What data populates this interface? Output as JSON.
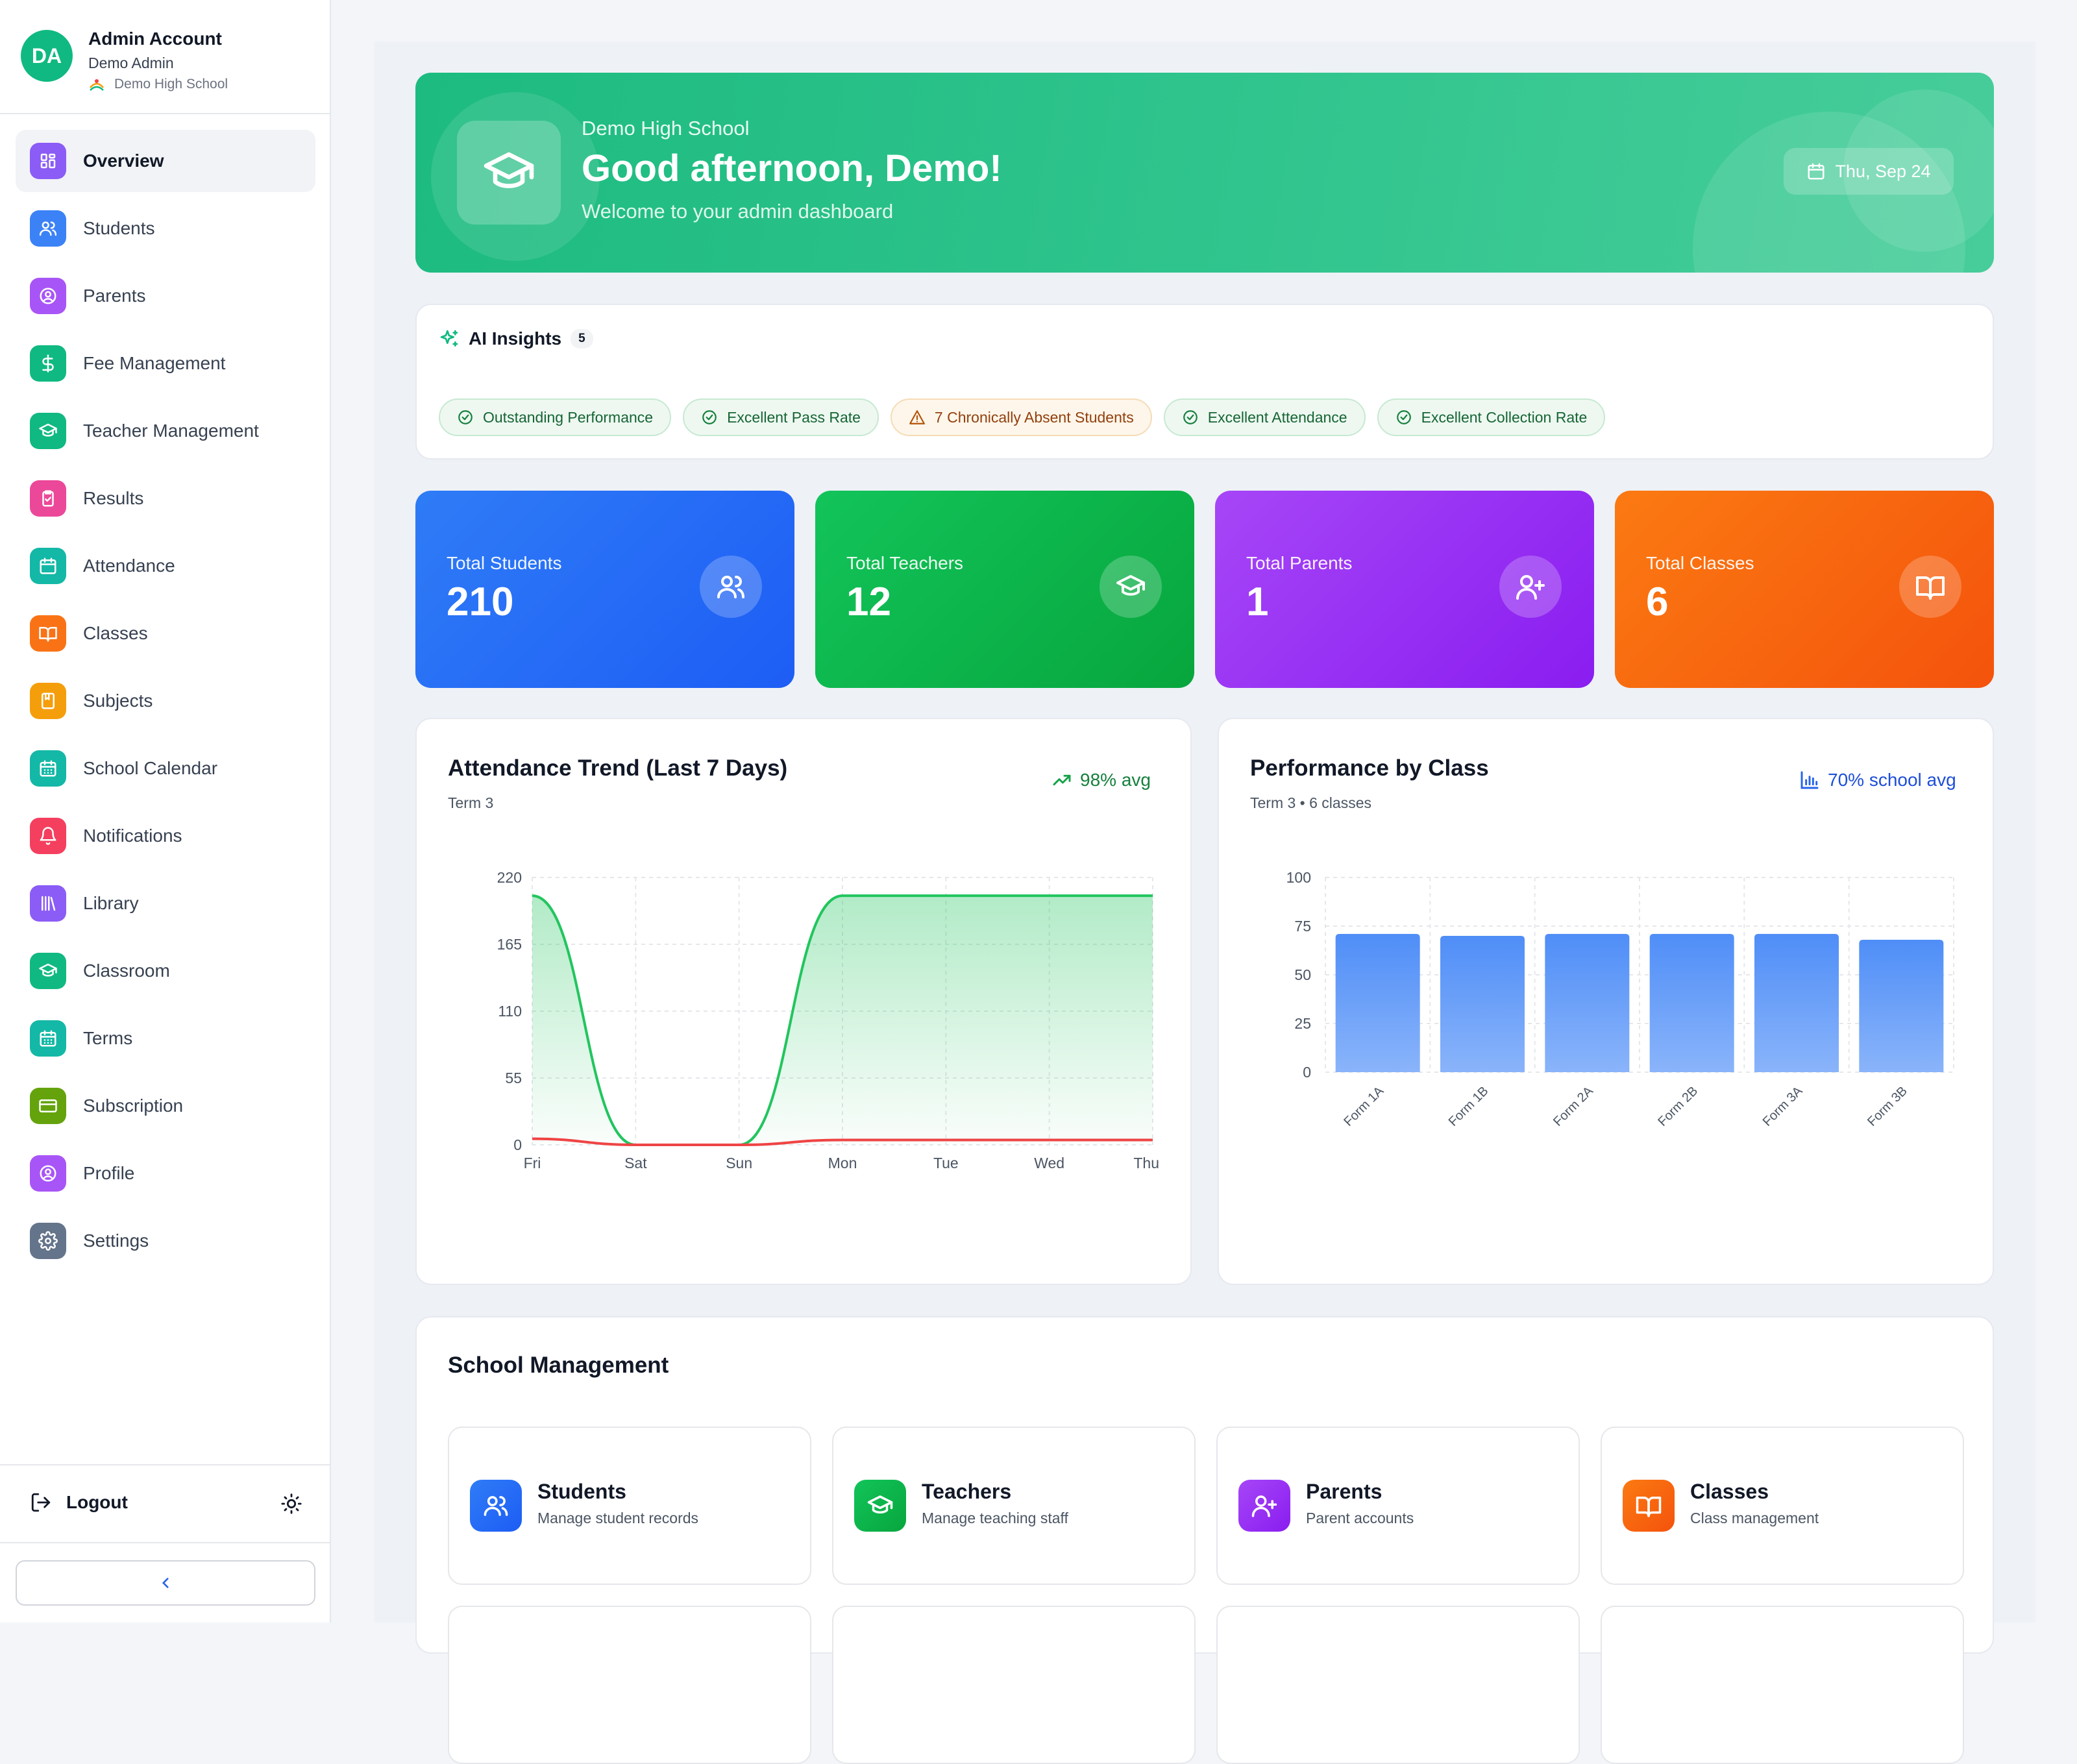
{
  "account": {
    "initials": "DA",
    "name": "Admin Account",
    "role": "Demo Admin",
    "school": "Demo High School"
  },
  "nav": [
    {
      "label": "Overview",
      "icon": "grid-icon",
      "color": "#8b5cf6"
    },
    {
      "label": "Students",
      "icon": "users-icon",
      "color": "#3b82f6"
    },
    {
      "label": "Parents",
      "icon": "user-circle-icon",
      "color": "#a855f7"
    },
    {
      "label": "Fee Management",
      "icon": "dollar-icon",
      "color": "#10b981"
    },
    {
      "label": "Teacher Management",
      "icon": "graduation-cap-icon",
      "color": "#10b981"
    },
    {
      "label": "Results",
      "icon": "clipboard-check-icon",
      "color": "#ec4899"
    },
    {
      "label": "Attendance",
      "icon": "calendar-icon",
      "color": "#14b8a6"
    },
    {
      "label": "Classes",
      "icon": "book-icon",
      "color": "#f97316"
    },
    {
      "label": "Subjects",
      "icon": "notebook-icon",
      "color": "#f59e0b"
    },
    {
      "label": "School Calendar",
      "icon": "calendar-grid-icon",
      "color": "#14b8a6"
    },
    {
      "label": "Notifications",
      "icon": "bell-icon",
      "color": "#f43f5e"
    },
    {
      "label": "Library",
      "icon": "library-icon",
      "color": "#8b5cf6"
    },
    {
      "label": "Classroom",
      "icon": "graduation-cap-icon",
      "color": "#10b981"
    },
    {
      "label": "Terms",
      "icon": "calendar-grid-icon",
      "color": "#14b8a6"
    },
    {
      "label": "Subscription",
      "icon": "credit-card-icon",
      "color": "#65a30d"
    },
    {
      "label": "Profile",
      "icon": "user-circle-icon",
      "color": "#a855f7"
    },
    {
      "label": "Settings",
      "icon": "gear-icon",
      "color": "#64748b"
    }
  ],
  "logout_label": "Logout",
  "hero": {
    "school": "Demo High School",
    "greeting": "Good afternoon, Demo!",
    "subtitle": "Welcome to your admin dashboard",
    "date": "Thu, Sep 24"
  },
  "insights": {
    "title": "AI Insights",
    "count": "5",
    "chips": [
      {
        "label": "Outstanding Performance",
        "kind": "good"
      },
      {
        "label": "Excellent Pass Rate",
        "kind": "good"
      },
      {
        "label": "7 Chronically Absent Students",
        "kind": "warn"
      },
      {
        "label": "Excellent Attendance",
        "kind": "good"
      },
      {
        "label": "Excellent Collection Rate",
        "kind": "good"
      }
    ]
  },
  "stats": [
    {
      "label": "Total Students",
      "value": "210",
      "icon": "users-icon",
      "gradient": [
        "#2f7cf6",
        "#1d5df5"
      ]
    },
    {
      "label": "Total Teachers",
      "value": "12",
      "icon": "graduation-cap-icon",
      "gradient": [
        "#12c45a",
        "#07a63d"
      ]
    },
    {
      "label": "Total Parents",
      "value": "1",
      "icon": "user-plus-icon",
      "gradient": [
        "#a646f7",
        "#8a1df0"
      ]
    },
    {
      "label": "Total Classes",
      "value": "6",
      "icon": "book-icon",
      "gradient": [
        "#fb7a12",
        "#f4530c"
      ]
    }
  ],
  "attendance_card": {
    "title": "Attendance Trend (Last 7 Days)",
    "subtitle": "Term 3",
    "badge": "98% avg"
  },
  "performance_card": {
    "title": "Performance by Class",
    "subtitle": "Term 3 • 6 classes",
    "badge": "70% school avg"
  },
  "chart_data": [
    {
      "type": "area",
      "x": [
        "Fri",
        "Sat",
        "Sun",
        "Mon",
        "Tue",
        "Wed",
        "Thu"
      ],
      "yticks": [
        0,
        55,
        110,
        165,
        220
      ],
      "ylim": [
        0,
        220
      ],
      "series": [
        {
          "values": [
            205,
            0,
            0,
            205,
            205,
            205,
            205
          ],
          "color": "#22c55e"
        },
        {
          "values": [
            5,
            0,
            0,
            4,
            4,
            4,
            4
          ],
          "color": "#ef4444"
        }
      ],
      "grid": true
    },
    {
      "type": "bar",
      "categories": [
        "Form 1A",
        "Form 1B",
        "Form 2A",
        "Form 2B",
        "Form 3A",
        "Form 3B"
      ],
      "values": [
        71,
        70,
        71,
        71,
        71,
        68
      ],
      "yticks": [
        0,
        25,
        50,
        75,
        100
      ],
      "ylim": [
        0,
        100
      ],
      "color": "#4f8ef7",
      "grid": true
    }
  ],
  "management": {
    "title": "School Management",
    "cards": [
      {
        "title": "Students",
        "desc": "Manage student records",
        "icon": "users-icon",
        "gradient": [
          "#2f7cf6",
          "#1d5df5"
        ]
      },
      {
        "title": "Teachers",
        "desc": "Manage teaching staff",
        "icon": "graduation-cap-icon",
        "gradient": [
          "#12c45a",
          "#07a63d"
        ]
      },
      {
        "title": "Parents",
        "desc": "Parent accounts",
        "icon": "user-plus-icon",
        "gradient": [
          "#a646f7",
          "#8a1df0"
        ]
      },
      {
        "title": "Classes",
        "desc": "Class management",
        "icon": "book-icon",
        "gradient": [
          "#fb7a12",
          "#f4530c"
        ]
      }
    ]
  }
}
